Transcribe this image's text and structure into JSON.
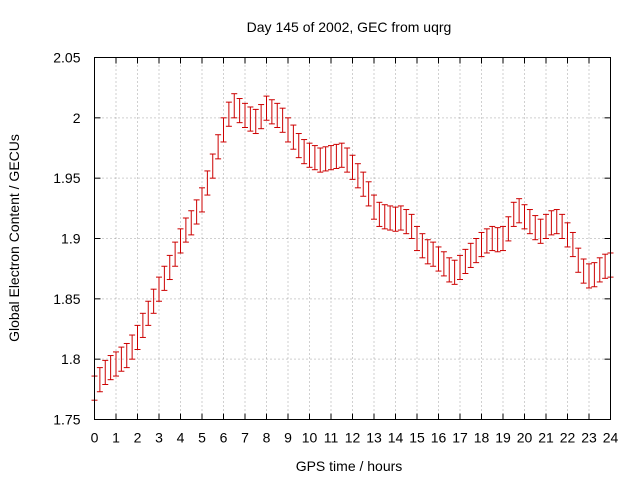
{
  "chart_data": {
    "type": "errorbar",
    "title": "Day 145 of 2002, GEC from uqrg",
    "xlabel": "GPS time / hours",
    "ylabel": "Global Electron Content / GECUs",
    "xlim": [
      0,
      24
    ],
    "ylim": [
      1.75,
      2.05
    ],
    "xticks": [
      "0",
      "1",
      "2",
      "3",
      "4",
      "5",
      "6",
      "7",
      "8",
      "9",
      "10",
      "11",
      "12",
      "13",
      "14",
      "15",
      "16",
      "17",
      "18",
      "19",
      "20",
      "21",
      "22",
      "23",
      "24"
    ],
    "yticks": [
      "1.75",
      "1.8",
      "1.85",
      "1.9",
      "1.95",
      "2",
      "2.05"
    ],
    "grid": true,
    "color": "#cc0000",
    "error": 0.01,
    "series": [
      {
        "x": [
          0,
          0.25,
          0.5,
          0.75,
          1,
          1.25,
          1.5,
          1.75,
          2,
          2.25,
          2.5,
          2.75,
          3,
          3.25,
          3.5,
          3.75,
          4,
          4.25,
          4.5,
          4.75,
          5,
          5.25,
          5.5,
          5.75,
          6,
          6.25,
          6.5,
          6.75,
          7,
          7.25,
          7.5,
          7.75,
          8,
          8.25,
          8.5,
          8.75,
          9,
          9.25,
          9.5,
          9.75,
          10,
          10.25,
          10.5,
          10.75,
          11,
          11.25,
          11.5,
          11.75,
          12,
          12.25,
          12.5,
          12.75,
          13,
          13.25,
          13.5,
          13.75,
          14,
          14.25,
          14.5,
          14.75,
          15,
          15.25,
          15.5,
          15.75,
          16,
          16.25,
          16.5,
          16.75,
          17,
          17.25,
          17.5,
          17.75,
          18,
          18.25,
          18.5,
          18.75,
          19,
          19.25,
          19.5,
          19.75,
          20,
          20.25,
          20.5,
          20.75,
          21,
          21.25,
          21.5,
          21.75,
          22,
          22.25,
          22.5,
          22.75,
          23,
          23.25,
          23.5,
          23.75,
          24
        ],
        "y": [
          1.776,
          1.783,
          1.789,
          1.793,
          1.796,
          1.8,
          1.803,
          1.81,
          1.818,
          1.828,
          1.838,
          1.848,
          1.858,
          1.867,
          1.876,
          1.887,
          1.898,
          1.907,
          1.913,
          1.922,
          1.932,
          1.946,
          1.96,
          1.976,
          1.99,
          2.003,
          2.01,
          2.006,
          2.002,
          1.999,
          1.997,
          2.001,
          2.008,
          2.005,
          2.002,
          1.998,
          1.99,
          1.984,
          1.977,
          1.972,
          1.969,
          1.967,
          1.965,
          1.966,
          1.967,
          1.968,
          1.969,
          1.965,
          1.959,
          1.952,
          1.945,
          1.937,
          1.926,
          1.92,
          1.918,
          1.917,
          1.916,
          1.917,
          1.914,
          1.91,
          1.9,
          1.894,
          1.889,
          1.887,
          1.883,
          1.879,
          1.874,
          1.872,
          1.876,
          1.881,
          1.886,
          1.89,
          1.895,
          1.898,
          1.9,
          1.899,
          1.9,
          1.908,
          1.92,
          1.923,
          1.918,
          1.914,
          1.909,
          1.906,
          1.91,
          1.913,
          1.914,
          1.91,
          1.903,
          1.895,
          1.882,
          1.873,
          1.869,
          1.87,
          1.874,
          1.877,
          1.878
        ]
      }
    ]
  }
}
